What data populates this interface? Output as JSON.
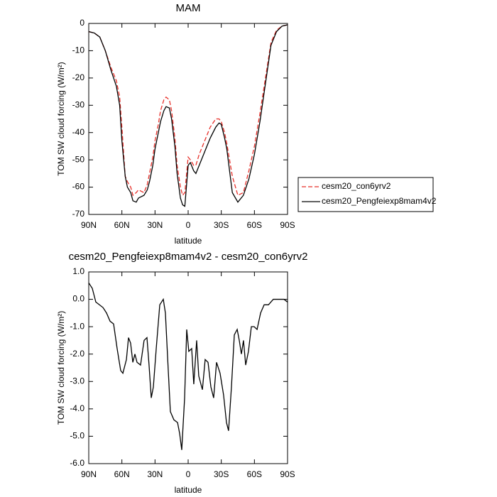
{
  "chart_data": [
    {
      "type": "line",
      "title": "MAM",
      "xlabel": "latitude",
      "ylabel": "TOM SW cloud forcing (W/m²)",
      "xlim": [
        90,
        -90
      ],
      "xticks": [
        {
          "value": 90,
          "label": "90N"
        },
        {
          "value": 60,
          "label": "60N"
        },
        {
          "value": 30,
          "label": "30N"
        },
        {
          "value": 0,
          "label": "0"
        },
        {
          "value": -30,
          "label": "30S"
        },
        {
          "value": -60,
          "label": "60S"
        },
        {
          "value": -90,
          "label": "90S"
        }
      ],
      "ylim": [
        -70,
        0
      ],
      "yticks": [
        0,
        -10,
        -20,
        -30,
        -40,
        -50,
        -60,
        -70
      ],
      "legend": "right",
      "x": [
        90,
        85,
        80,
        75,
        70,
        65,
        62,
        60,
        57,
        55,
        52,
        50,
        47,
        45,
        40,
        37,
        35,
        32,
        30,
        27,
        25,
        22,
        20,
        17,
        15,
        12,
        10,
        7,
        5,
        3,
        0,
        -2,
        -5,
        -7,
        -10,
        -15,
        -20,
        -25,
        -28,
        -30,
        -33,
        -35,
        -40,
        -45,
        -50,
        -55,
        -60,
        -65,
        -70,
        -75,
        -80,
        -85,
        -90
      ],
      "series": [
        {
          "name": "cesm20_con6yrv2",
          "color": "#e8302a",
          "linestyle": "dashed",
          "values": [
            -3,
            -3.5,
            -5,
            -10,
            -16,
            -21,
            -27,
            -38,
            -56,
            -58,
            -60,
            -63,
            -62,
            -61,
            -62,
            -59,
            -55,
            -49,
            -43,
            -37,
            -32,
            -28,
            -27,
            -28,
            -32,
            -42,
            -52,
            -60,
            -63,
            -62,
            -49,
            -50,
            -52,
            -52,
            -48,
            -43,
            -38,
            -35,
            -35,
            -36,
            -40,
            -44,
            -56,
            -63,
            -62,
            -54,
            -45,
            -33,
            -20,
            -7,
            -2.5,
            -1,
            -0.5
          ]
        },
        {
          "name": "cesm20_Pengfeiexp8mam4v2",
          "color": "#000000",
          "linestyle": "solid",
          "values": [
            -3,
            -3.5,
            -5,
            -10,
            -17,
            -23,
            -30,
            -43,
            -56,
            -60,
            -62,
            -65,
            -65.5,
            -64,
            -63,
            -61,
            -58,
            -52,
            -46,
            -40,
            -36,
            -32,
            -30.5,
            -31,
            -35,
            -45,
            -55,
            -64,
            -66.5,
            -67,
            -52,
            -51,
            -54,
            -55,
            -52,
            -47,
            -42,
            -38,
            -36.5,
            -37,
            -42,
            -46,
            -62,
            -65.5,
            -63,
            -57,
            -48,
            -36,
            -22,
            -8,
            -3,
            -1,
            -0.5
          ]
        }
      ]
    },
    {
      "type": "line",
      "title": "cesm20_Pengfeiexp8mam4v2 - cesm20_con6yrv2",
      "xlabel": "latitude",
      "ylabel": "TOM SW cloud forcing (W/m²)",
      "xlim": [
        90,
        -90
      ],
      "xticks": [
        {
          "value": 90,
          "label": "90N"
        },
        {
          "value": 60,
          "label": "60N"
        },
        {
          "value": 30,
          "label": "30N"
        },
        {
          "value": 0,
          "label": "0"
        },
        {
          "value": -30,
          "label": "30S"
        },
        {
          "value": -60,
          "label": "60S"
        },
        {
          "value": -90,
          "label": "90S"
        }
      ],
      "ylim": [
        -6,
        1
      ],
      "yticks": [
        {
          "value": 1,
          "label": "1.0"
        },
        {
          "value": 0,
          "label": "0.0"
        },
        {
          "value": -1,
          "label": "-1.0"
        },
        {
          "value": -2,
          "label": "-2.0"
        },
        {
          "value": -3,
          "label": "-3.0"
        },
        {
          "value": -4,
          "label": "-4.0"
        },
        {
          "value": -5,
          "label": "-5.0"
        },
        {
          "value": -6,
          "label": "-6.0"
        }
      ],
      "color": "#000000",
      "x": [
        90,
        86.8,
        83.6,
        77.1,
        73.9,
        70.7,
        67.5,
        64.3,
        61.1,
        59.1,
        55.9,
        54.0,
        52.1,
        50.1,
        48.2,
        46.3,
        43.1,
        39.9,
        37.3,
        35.4,
        33.4,
        31.5,
        28.9,
        25.7,
        22.5,
        20.6,
        18.0,
        16.1,
        12.9,
        9.6,
        7.7,
        5.8,
        3.2,
        1.3,
        -0.6,
        -3.2,
        -5.1,
        -7.7,
        -9.6,
        -12.9,
        -15.4,
        -18.0,
        -20.6,
        -23.1,
        -25.7,
        -28.9,
        -32.1,
        -34.7,
        -36.6,
        -39.2,
        -41.8,
        -44.4,
        -46.3,
        -48.2,
        -50.1,
        -52.1,
        -54.6,
        -57.2,
        -59.8,
        -62.4,
        -65.6,
        -68.8,
        -72.7,
        -77.1,
        -83.6,
        -86.8,
        -90
      ],
      "values": [
        0.6,
        0.4,
        -0.1,
        -0.3,
        -0.5,
        -0.8,
        -0.9,
        -1.8,
        -2.6,
        -2.7,
        -2.2,
        -1.4,
        -1.6,
        -2.3,
        -2.0,
        -2.3,
        -2.4,
        -1.5,
        -1.4,
        -2.4,
        -3.6,
        -3.2,
        -1.8,
        -0.2,
        0.0,
        -0.5,
        -2.6,
        -4.1,
        -4.4,
        -4.5,
        -4.9,
        -5.5,
        -3.6,
        -1.1,
        -1.9,
        -1.8,
        -3.1,
        -1.5,
        -2.8,
        -3.3,
        -2.2,
        -2.3,
        -3.2,
        -3.6,
        -2.3,
        -2.7,
        -3.5,
        -4.5,
        -4.8,
        -3.2,
        -1.3,
        -1.1,
        -1.5,
        -2.0,
        -1.5,
        -2.4,
        -1.9,
        -1.0,
        -1.0,
        -1.1,
        -0.5,
        -0.2,
        -0.2,
        0.0,
        0.0,
        0.0,
        -0.1
      ]
    }
  ]
}
